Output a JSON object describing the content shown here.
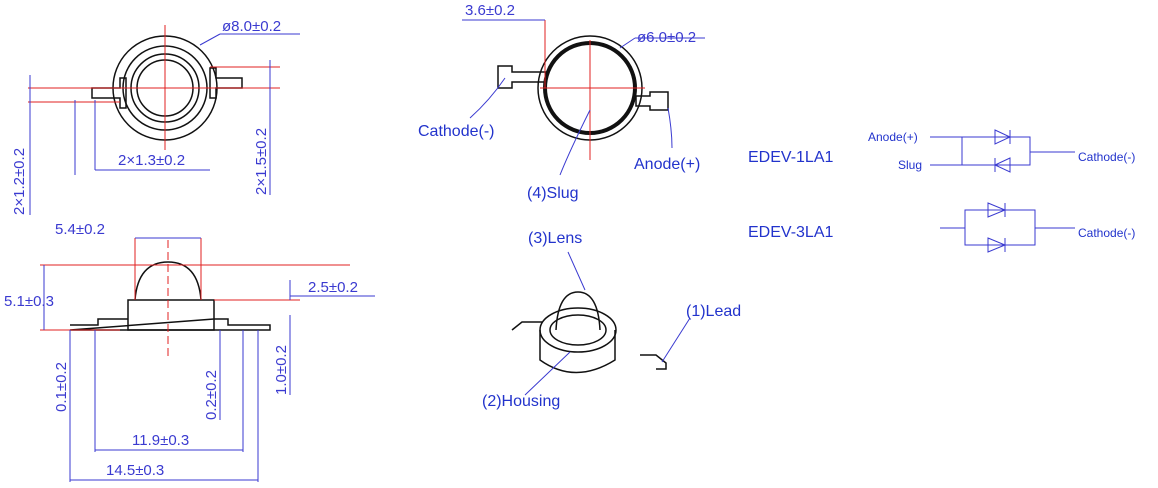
{
  "top_view": {
    "diameter": "ø8.0±0.2",
    "lead_width": "2×1.2±0.2",
    "lead_pitch": "2×1.3±0.2",
    "lead_offset": "2×1.5±0.2"
  },
  "bottom_view": {
    "offset": "3.6±0.2",
    "slug_diameter": "ø6.0±0.2",
    "cathode": "Cathode(-)",
    "anode": "Anode(+)",
    "slug": "(4)Slug"
  },
  "side_view": {
    "lens_width": "5.4±0.2",
    "height": "5.1±0.3",
    "lens_height": "2.5±0.2",
    "lead_offset": "0.1±0.2",
    "slug_offset": "0.2±0.2",
    "body_offset": "1.0±0.2",
    "lead_span_inner": "11.9±0.3",
    "lead_span_outer": "14.5±0.3"
  },
  "perspective_view": {
    "lens": "(3)Lens",
    "lead": "(1)Lead",
    "housing": "(2)Housing"
  },
  "circuits": [
    {
      "model": "EDEV-1LA1",
      "anode": "Anode(+)",
      "slug": "Slug",
      "cathode": "Cathode(-)"
    },
    {
      "model": "EDEV-3LA1",
      "cathode": "Cathode(-)"
    }
  ]
}
